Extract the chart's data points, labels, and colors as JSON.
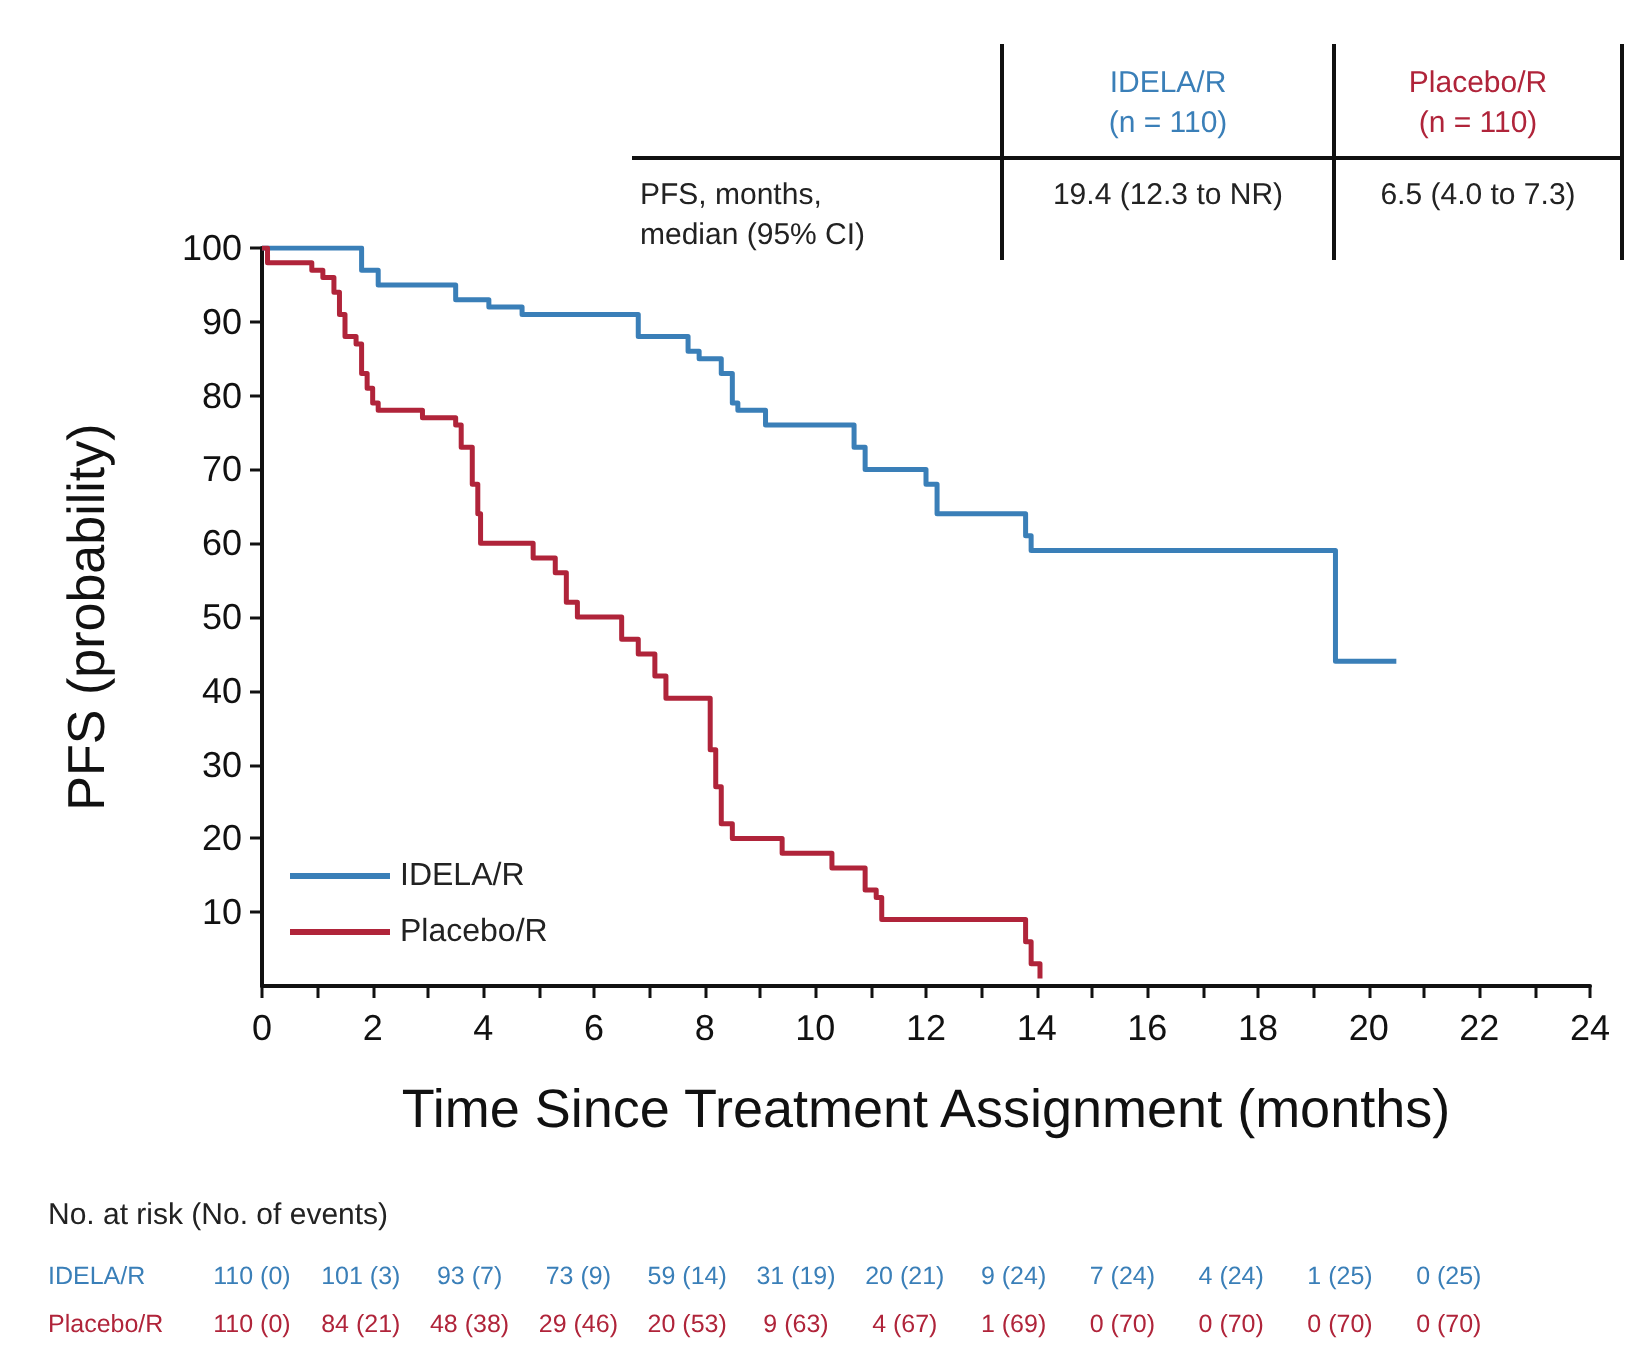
{
  "chart_data": {
    "type": "step",
    "xlabel": "Time Since Treatment Assignment (months)",
    "ylabel": "PFS (probability)",
    "xlim": [
      0,
      24
    ],
    "xticks": [
      0,
      {
        "value": 1,
        "label": null
      },
      2,
      {
        "value": 3,
        "label": null
      },
      4,
      {
        "value": 5,
        "label": null
      },
      6,
      {
        "value": 7,
        "label": null
      },
      8,
      {
        "value": 9,
        "label": null
      },
      10,
      {
        "value": 11,
        "label": null
      },
      12,
      {
        "value": 13,
        "label": null
      },
      14,
      {
        "value": 15,
        "label": null
      },
      16,
      {
        "value": 17,
        "label": null
      },
      18,
      {
        "value": 19,
        "label": null
      },
      20,
      {
        "value": 21,
        "label": null
      },
      22,
      {
        "value": 23,
        "label": null
      },
      24
    ],
    "ylim": [
      0,
      100
    ],
    "yticks": [
      10,
      20,
      30,
      40,
      50,
      60,
      70,
      80,
      90,
      100
    ],
    "grid": false,
    "legend": "bottom left",
    "marker": "none",
    "line_style": "solid",
    "series": [
      {
        "name": "IDELA/R",
        "color": "#3a7fb8",
        "x": [
          0,
          1.8,
          2.1,
          3.5,
          4.1,
          4.7,
          6.8,
          7.7,
          7.9,
          8.3,
          8.5,
          8.6,
          9.1,
          10.7,
          10.9,
          12.0,
          12.2,
          13.8,
          13.9,
          19.4,
          20.5
        ],
        "values": [
          100,
          97,
          95,
          93,
          92,
          91,
          88,
          86,
          85,
          83,
          79,
          78,
          76,
          73,
          70,
          68,
          64,
          61,
          59,
          44,
          44
        ]
      },
      {
        "name": "Placebo/R",
        "color": "#b0243a",
        "x": [
          0,
          0.1,
          0.9,
          1.1,
          1.3,
          1.4,
          1.5,
          1.7,
          1.8,
          1.9,
          2.0,
          2.1,
          2.9,
          3.5,
          3.6,
          3.8,
          3.9,
          3.95,
          4.9,
          5.3,
          5.5,
          5.7,
          6.5,
          6.8,
          7.1,
          7.3,
          8.1,
          8.2,
          8.3,
          8.5,
          9.4,
          10.3,
          10.9,
          11.1,
          11.2,
          13.8,
          13.9,
          14.06
        ],
        "values": [
          100,
          98,
          97,
          96,
          94,
          91,
          88,
          87,
          83,
          81,
          79,
          78,
          77,
          76,
          73,
          68,
          64,
          60,
          58,
          56,
          52,
          50,
          47,
          45,
          42,
          39,
          32,
          27,
          22,
          20,
          18,
          16,
          13,
          12,
          9,
          6,
          3,
          1
        ]
      }
    ],
    "annotations": [
      "IDELA/R\n(n = 110)",
      "Placebo/R\n(n = 110)",
      "PFS, months,\nmedian (95% CI)",
      "19.4 (12.3 to NR)",
      "6.5 (4.0 to 7.3)",
      "No. at risk (No. of events)",
      "IDELA/R",
      "110 (0)",
      "101 (3)",
      "93 (7)",
      "73 (9)",
      "59 (14)",
      "31 (19)",
      "20 (21)",
      "9 (24)",
      "7 (24)",
      "4 (24)",
      "1 (25)",
      "0 (25)",
      "Placebo/R",
      "110 (0)",
      "84 (21)",
      "48 (38)",
      "29 (46)",
      "20 (53)",
      "9 (63)",
      "4 (67)",
      "1 (69)",
      "0 (70)",
      "0 (70)",
      "0 (70)",
      "0 (70)"
    ]
  }
}
